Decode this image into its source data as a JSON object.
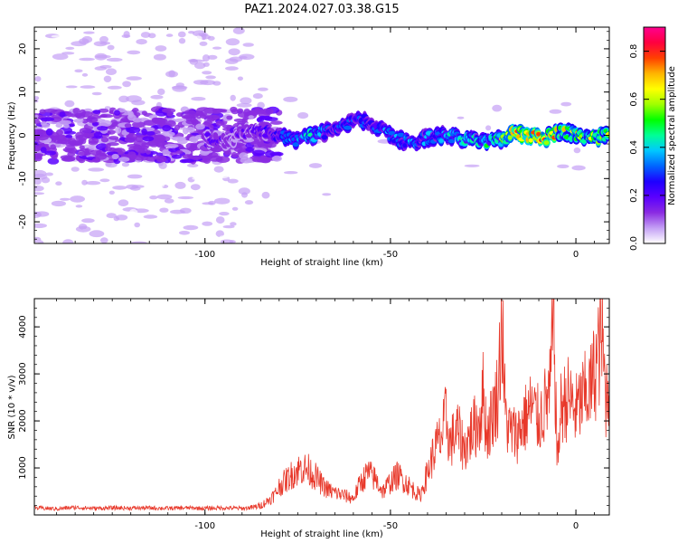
{
  "title": "PAZ1.2024.027.03.38.G15",
  "chart_data": [
    {
      "type": "heatmap",
      "xlabel": "Height of straight line (km)",
      "ylabel": "Frequency (Hz)",
      "xlim": [
        -146,
        9
      ],
      "ylim": [
        -25,
        25
      ],
      "xticks": [
        -100,
        -50,
        0
      ],
      "yticks": [
        -20,
        -10,
        0,
        10,
        20
      ],
      "colorbar": {
        "label": "Normalized spectral amplitude",
        "range": [
          0,
          0.9
        ],
        "ticks": [
          0.0,
          0.2,
          0.4,
          0.6,
          0.8
        ],
        "colormap": [
          "#ffffff",
          "#c4a0f5",
          "#8a2be2",
          "#5a00ff",
          "#1e00ff",
          "#0064ff",
          "#00c8ff",
          "#00ff96",
          "#00ff00",
          "#a0ff00",
          "#ffff00",
          "#ffb400",
          "#ff4000",
          "#ff0040",
          "#ff0090"
        ]
      },
      "ridge": [
        {
          "x": -146,
          "y": 1.0,
          "amp": 0.14
        },
        {
          "x": -135,
          "y": -0.5,
          "amp": 0.15
        },
        {
          "x": -125,
          "y": 0.5,
          "amp": 0.16
        },
        {
          "x": -115,
          "y": -1.0,
          "amp": 0.17
        },
        {
          "x": -105,
          "y": 0.0,
          "amp": 0.17
        },
        {
          "x": -95,
          "y": -1.5,
          "amp": 0.16
        },
        {
          "x": -88,
          "y": 1.0,
          "amp": 0.16
        },
        {
          "x": -80,
          "y": 0.0,
          "amp": 0.25
        },
        {
          "x": -75,
          "y": -1.0,
          "amp": 0.35
        },
        {
          "x": -70,
          "y": 0.0,
          "amp": 0.38
        },
        {
          "x": -65,
          "y": 1.5,
          "amp": 0.3
        },
        {
          "x": -60,
          "y": 3.0,
          "amp": 0.32
        },
        {
          "x": -57,
          "y": 3.5,
          "amp": 0.28
        },
        {
          "x": -52,
          "y": 1.0,
          "amp": 0.3
        },
        {
          "x": -48,
          "y": -1.0,
          "amp": 0.32
        },
        {
          "x": -44,
          "y": -1.5,
          "amp": 0.34
        },
        {
          "x": -40,
          "y": -0.5,
          "amp": 0.33
        },
        {
          "x": -35,
          "y": 0.0,
          "amp": 0.37
        },
        {
          "x": -30,
          "y": -1.0,
          "amp": 0.4
        },
        {
          "x": -25,
          "y": -1.5,
          "amp": 0.42
        },
        {
          "x": -20,
          "y": -1.0,
          "amp": 0.5
        },
        {
          "x": -17,
          "y": 0.5,
          "amp": 0.62
        },
        {
          "x": -12,
          "y": 0.0,
          "amp": 0.72
        },
        {
          "x": -8,
          "y": -0.5,
          "amp": 0.7
        },
        {
          "x": -5,
          "y": 1.0,
          "amp": 0.62
        },
        {
          "x": -2,
          "y": 0.5,
          "amp": 0.6
        },
        {
          "x": 2,
          "y": -0.5,
          "amp": 0.58
        },
        {
          "x": 6,
          "y": -0.5,
          "amp": 0.6
        },
        {
          "x": 9,
          "y": 0.0,
          "amp": 0.55
        }
      ]
    },
    {
      "type": "line",
      "xlabel": "Height of straight line (km)",
      "ylabel": "SNR (10 * v/v)",
      "xlim": [
        -146,
        9
      ],
      "ylim": [
        0,
        4600
      ],
      "xticks": [
        -100,
        -50,
        0
      ],
      "yticks": [
        1000,
        2000,
        3000,
        4000
      ],
      "color": "#e8392b",
      "series": [
        {
          "x": [
            -146,
            -140,
            -135,
            -130,
            -125,
            -120,
            -115,
            -110,
            -105,
            -100,
            -95,
            -90,
            -87,
            -85,
            -83,
            -81,
            -80,
            -78,
            -76,
            -74,
            -72,
            -70,
            -68,
            -66,
            -64,
            -62,
            -60,
            -58,
            -56,
            -54,
            -52,
            -50,
            -48,
            -46,
            -44,
            -42,
            -40,
            -38,
            -36,
            -35,
            -34,
            -32,
            -30,
            -28,
            -26,
            -25,
            -24,
            -22,
            -21,
            -20,
            -19,
            -18,
            -16,
            -14,
            -12,
            -10,
            -8,
            -7,
            -6,
            -5,
            -4,
            -2,
            0,
            2,
            4,
            6,
            7,
            8,
            9
          ],
          "y": [
            150,
            130,
            160,
            140,
            150,
            145,
            150,
            140,
            150,
            140,
            150,
            140,
            160,
            200,
            300,
            450,
            600,
            750,
            900,
            1000,
            950,
            800,
            600,
            500,
            450,
            400,
            350,
            700,
            900,
            750,
            500,
            700,
            850,
            700,
            550,
            400,
            900,
            1400,
            1700,
            2100,
            1500,
            1800,
            1400,
            1800,
            2000,
            2600,
            1700,
            2300,
            2600,
            4200,
            2100,
            1800,
            1700,
            2000,
            2300,
            2000,
            2400,
            2600,
            4200,
            1100,
            2300,
            2500,
            2200,
            2500,
            2700,
            3400,
            3900,
            2500,
            2800
          ]
        }
      ]
    }
  ]
}
